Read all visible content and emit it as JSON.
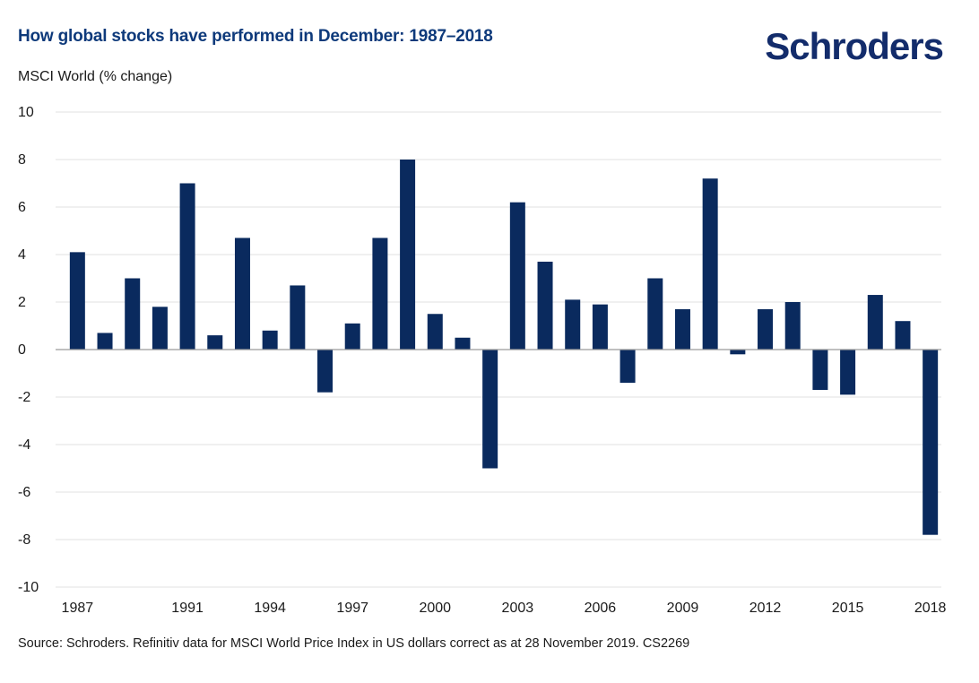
{
  "title": "How global stocks have performed in December: 1987–2018",
  "brand": "Schroders",
  "source": "Source: Schroders. Refinitiv data for MSCI World Price Index in US dollars correct as at 28 November 2019. CS2269",
  "colors": {
    "bar": "#0a2a5e",
    "title": "#0e3a7b",
    "grid": "#e2e2e2",
    "axis": "#9a9a9a"
  },
  "chart_data": {
    "type": "bar",
    "ylabel": "MSCI World (% change)",
    "xlabel": "",
    "ylim": [
      -10,
      10
    ],
    "yticks": [
      10,
      8,
      6,
      4,
      2,
      0,
      -2,
      -4,
      -6,
      -8,
      -10
    ],
    "ytick_labels": [
      "10",
      "8",
      "6",
      "4",
      "2",
      "0",
      "-2",
      "-4",
      "-6",
      "-8",
      "-10"
    ],
    "xtick_labels": [
      "1987",
      "1991",
      "1994",
      "1997",
      "2000",
      "2003",
      "2006",
      "2009",
      "2012",
      "2015",
      "2018"
    ],
    "grid": true,
    "categories": [
      1987,
      1988,
      1989,
      1990,
      1991,
      1992,
      1993,
      1994,
      1995,
      1996,
      1997,
      1998,
      1999,
      2000,
      2001,
      2002,
      2003,
      2004,
      2005,
      2006,
      2007,
      2008,
      2009,
      2010,
      2011,
      2012,
      2013,
      2014,
      2015,
      2016,
      2017,
      2018
    ],
    "values": [
      4.1,
      0.7,
      3.0,
      1.8,
      7.0,
      0.6,
      4.7,
      0.8,
      2.7,
      -1.8,
      1.1,
      4.7,
      8.0,
      1.5,
      0.5,
      -5.0,
      6.2,
      3.7,
      2.1,
      1.9,
      -1.4,
      3.0,
      1.7,
      7.2,
      -0.2,
      1.7,
      2.0,
      -1.7,
      -1.9,
      2.3,
      1.2,
      -7.8
    ]
  }
}
